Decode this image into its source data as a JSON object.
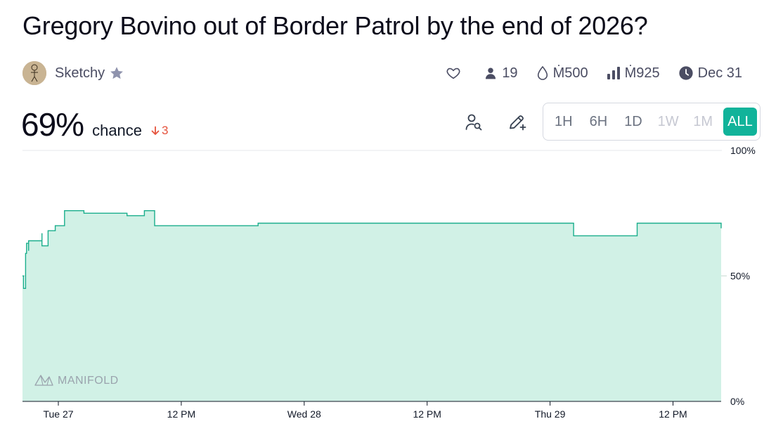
{
  "title": "Gregory Bovino out of Border Patrol by the end of 2026?",
  "author": {
    "name": "Sketchy"
  },
  "stats": {
    "traders": "19",
    "liquidity": "Ṁ500",
    "volume": "Ṁ925",
    "close_date": "Dec 31"
  },
  "probability": {
    "value": "69%",
    "label": "chance",
    "change": "3",
    "change_direction": "down"
  },
  "time_ranges": [
    {
      "label": "1H",
      "state": "enabled"
    },
    {
      "label": "6H",
      "state": "enabled"
    },
    {
      "label": "1D",
      "state": "enabled"
    },
    {
      "label": "1W",
      "state": "disabled"
    },
    {
      "label": "1M",
      "state": "disabled"
    },
    {
      "label": "ALL",
      "state": "active"
    }
  ],
  "watermark": "MANIFOLD",
  "colors": {
    "accent": "#11b39a",
    "line": "#1aae8c",
    "fill": "#d1f1e6",
    "down": "#e5533d"
  },
  "icons": [
    "heart-icon",
    "person-icon",
    "droplet-icon",
    "bar-chart-icon",
    "clock-icon",
    "user-search-icon",
    "pencil-plus-icon",
    "star-icon",
    "arrow-down-icon"
  ],
  "chart_data": {
    "type": "area",
    "x_unit": "hours since Tue 27 00:00",
    "xlim": [
      -3.5,
      64.7
    ],
    "ylim": [
      0,
      100
    ],
    "y_ticks": [
      "100%",
      "50%",
      "0%"
    ],
    "y_tick_values": [
      100,
      50,
      0
    ],
    "x_ticks": [
      {
        "label": "Tue 27",
        "x": 0
      },
      {
        "label": "12 PM",
        "x": 12
      },
      {
        "label": "Wed 28",
        "x": 24
      },
      {
        "label": "12 PM",
        "x": 36
      },
      {
        "label": "Thu 29",
        "x": 48
      },
      {
        "label": "12 PM",
        "x": 60
      }
    ],
    "grid": "horizontal at 50%",
    "step": true,
    "points": [
      [
        -3.5,
        50
      ],
      [
        -3.4,
        45
      ],
      [
        -3.2,
        59
      ],
      [
        -3.1,
        63
      ],
      [
        -2.9,
        60
      ],
      [
        -2.9,
        64
      ],
      [
        -1.8,
        64
      ],
      [
        -1.6,
        67
      ],
      [
        -1.6,
        62
      ],
      [
        -1.0,
        68
      ],
      [
        -0.3,
        70
      ],
      [
        0.5,
        70
      ],
      [
        0.6,
        76
      ],
      [
        2.5,
        75
      ],
      [
        6.2,
        75
      ],
      [
        6.7,
        74
      ],
      [
        8.4,
        76
      ],
      [
        9.4,
        70
      ],
      [
        15.2,
        70
      ],
      [
        19.5,
        71
      ],
      [
        56.5,
        71
      ],
      [
        50.3,
        66
      ],
      [
        50.3,
        66
      ],
      [
        64.7,
        69
      ]
    ]
  }
}
